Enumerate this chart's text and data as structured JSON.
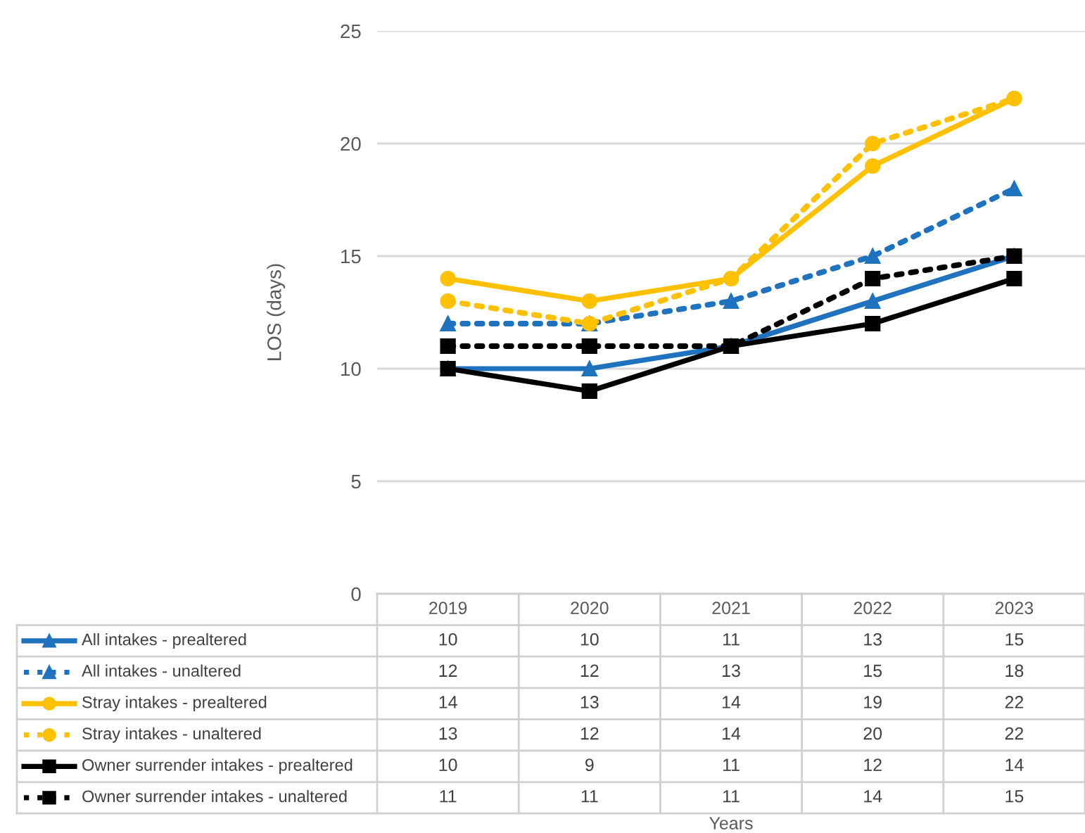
{
  "chart_data": {
    "type": "line",
    "annotations": [
      "Years"
    ],
    "ylabel": "LOS (days)",
    "categories": [
      "2019",
      "2020",
      "2021",
      "2022",
      "2023"
    ],
    "series": [
      {
        "name": "All intakes - prealtered",
        "color": "#1f73be",
        "marker": "triangle",
        "line_style": "solid",
        "values": [
          10,
          10,
          11,
          13,
          15
        ]
      },
      {
        "name": "All intakes - unaltered",
        "color": "#1f73be",
        "marker": "triangle",
        "line_style": "dotted",
        "values": [
          12,
          12,
          13,
          15,
          18
        ]
      },
      {
        "name": "Stray intakes - prealtered",
        "color": "#ffc000",
        "marker": "circle",
        "line_style": "solid",
        "values": [
          14,
          13,
          14,
          19,
          22
        ]
      },
      {
        "name": "Stray intakes - unaltered",
        "color": "#ffc000",
        "marker": "circle",
        "line_style": "dotted",
        "values": [
          13,
          12,
          14,
          20,
          22
        ]
      },
      {
        "name": "Owner surrender intakes - prealtered",
        "color": "#000000",
        "marker": "square",
        "line_style": "solid",
        "values": [
          10,
          9,
          11,
          12,
          14
        ]
      },
      {
        "name": "Owner surrender intakes - unaltered",
        "color": "#000000",
        "marker": "square",
        "line_style": "dotted",
        "values": [
          11,
          11,
          11,
          14,
          15
        ]
      }
    ],
    "ylim": [
      0,
      25
    ],
    "yticks": [
      0,
      5,
      10,
      15,
      20,
      25
    ],
    "grid": "y",
    "data_labels": true,
    "legend": "bottom left"
  }
}
